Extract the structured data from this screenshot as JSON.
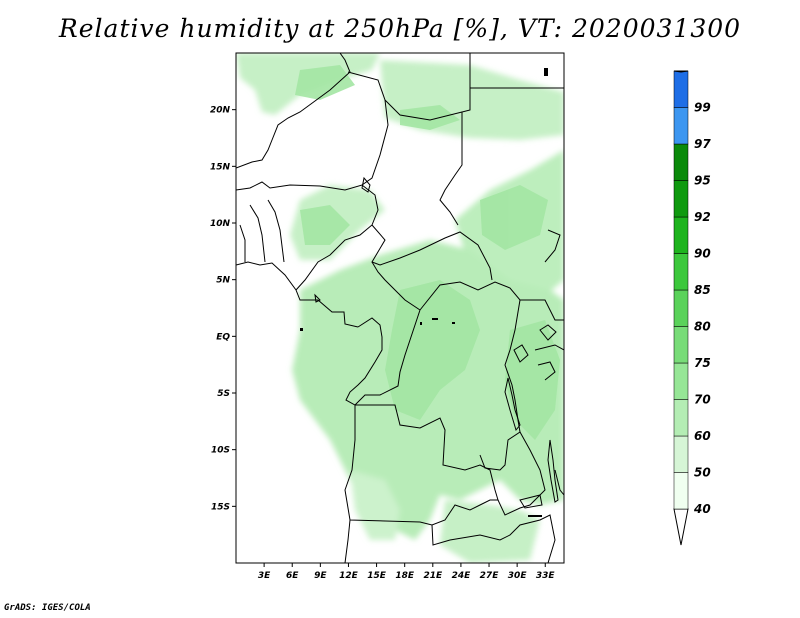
{
  "title": "Relative humidity at 250hPa [%], VT: 2020031300",
  "credit": "GrADS: IGES/COLA",
  "map": {
    "lon_range": [
      0,
      35
    ],
    "lat_range": [
      -20,
      25
    ],
    "lat_ticks": [
      {
        "value": 20,
        "label": "20N"
      },
      {
        "value": 15,
        "label": "15N"
      },
      {
        "value": 10,
        "label": "10N"
      },
      {
        "value": 5,
        "label": "5N"
      },
      {
        "value": 0,
        "label": "EQ"
      },
      {
        "value": -5,
        "label": "5S"
      },
      {
        "value": -10,
        "label": "10S"
      },
      {
        "value": -15,
        "label": "15S"
      }
    ],
    "lon_ticks": [
      {
        "value": 3,
        "label": "3E"
      },
      {
        "value": 6,
        "label": "6E"
      },
      {
        "value": 9,
        "label": "9E"
      },
      {
        "value": 12,
        "label": "12E"
      },
      {
        "value": 15,
        "label": "15E"
      },
      {
        "value": 18,
        "label": "18E"
      },
      {
        "value": 21,
        "label": "21E"
      },
      {
        "value": 24,
        "label": "24E"
      },
      {
        "value": 27,
        "label": "27E"
      },
      {
        "value": 30,
        "label": "30E"
      },
      {
        "value": 33,
        "label": "33E"
      }
    ]
  },
  "colorbar": {
    "levels": [
      {
        "label": "40",
        "color": "#f0fff0"
      },
      {
        "label": "50",
        "color": "#d6f5d6"
      },
      {
        "label": "60",
        "color": "#b4edb4"
      },
      {
        "label": "70",
        "color": "#96e696"
      },
      {
        "label": "75",
        "color": "#78dc78"
      },
      {
        "label": "80",
        "color": "#5ad25a"
      },
      {
        "label": "85",
        "color": "#3cc83c"
      },
      {
        "label": "90",
        "color": "#1eb41e"
      },
      {
        "label": "92",
        "color": "#0f9a0f"
      },
      {
        "label": "95",
        "color": "#0a8a0a"
      },
      {
        "label": "97",
        "color": "#3c96f0"
      },
      {
        "label": "99",
        "color": "#1e6ee6"
      }
    ],
    "top_color": "#1450c8",
    "bottom_color": "#ffffff"
  }
}
